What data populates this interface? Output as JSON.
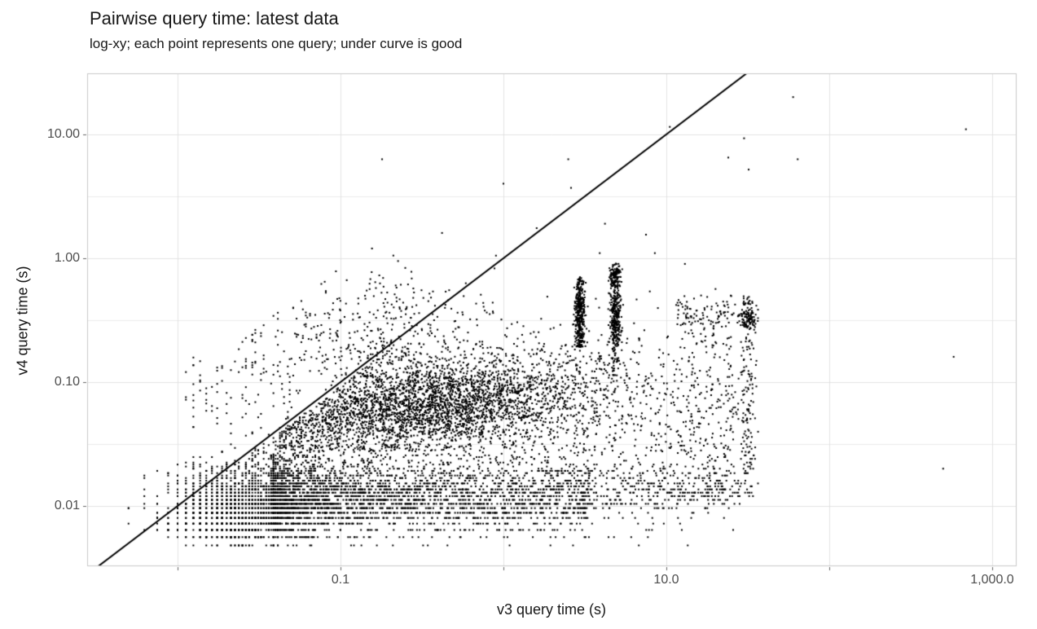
{
  "chart_data": {
    "type": "scatter",
    "title": "Pairwise query time: latest data",
    "subtitle": "log-xy; each point represents one query; under curve is good",
    "xlabel": "v3 query time (s)",
    "ylabel": "v4 query time (s)",
    "x_scale": {
      "type": "log10",
      "log_range": [
        -2.555,
        3.15
      ],
      "ticks": [
        {
          "value": 0.01,
          "label": ""
        },
        {
          "value": 0.1,
          "label": "0.1"
        },
        {
          "value": 1,
          "label": ""
        },
        {
          "value": 10,
          "label": "10.0"
        },
        {
          "value": 100,
          "label": ""
        },
        {
          "value": 1000,
          "label": "1,000.0"
        }
      ],
      "minor_gridlines": []
    },
    "y_scale": {
      "type": "log10",
      "log_range": [
        -2.487,
        1.493
      ],
      "ticks": [
        {
          "value": 10,
          "label": "10.00"
        },
        {
          "value": 1,
          "label": "1.00"
        },
        {
          "value": 0.1,
          "label": "0.10"
        },
        {
          "value": 0.01,
          "label": "0.01"
        }
      ],
      "minor_gridlines": [
        3.162,
        0.3162,
        0.03162
      ]
    },
    "reference_line": {
      "kind": "y=x",
      "color": "#000000",
      "width": 2
    },
    "point_style": {
      "color": "#000000",
      "size": 2
    },
    "colors": {
      "grid_major": "#e3e3e3",
      "grid_minor": "#ebebeb",
      "panel_border": "#c9c9c9",
      "tick_mark": "#666666",
      "tick_text": "#4d4d4d",
      "title_text": "#171717",
      "background": "#ffffff"
    },
    "generator": {
      "seed": 42,
      "note": "point cloud of ~11000 queries, log10 coords; quantized timer steps create stripe/grid texture at low values",
      "quantization": {
        "x_step": 0.00125,
        "x_below": 0.085,
        "x_min": 0.00475,
        "y_step": 0.0008,
        "y_below": 0.026,
        "y_min": 0.0048
      },
      "clusters": [
        {
          "name": "grid-low",
          "n": 1500,
          "lx": [
            "n",
            -1.62,
            0.22,
            -2.33,
            -1.05
          ],
          "ly": [
            "n",
            -2.02,
            0.17,
            -2.32,
            -1.35
          ],
          "cap": [
            0.6,
            -0.45
          ]
        },
        {
          "name": "stripes-mid",
          "n": 2500,
          "lx": [
            "pu",
            -1.42,
            1.95,
            1.7
          ],
          "ly": [
            "n",
            -1.92,
            0.14,
            -2.32,
            -1.58
          ]
        },
        {
          "name": "stripes-far",
          "n": 300,
          "lx": [
            "u",
            0.4,
            1.45
          ],
          "ly": [
            "n",
            -1.87,
            0.1,
            -2.05,
            -1.65
          ]
        },
        {
          "name": "main-band",
          "n": 2900,
          "lx": [
            "n",
            -0.42,
            0.52,
            -1.38,
            1.05
          ],
          "ly": [
            "lin",
            0.12,
            -1.13,
            0.17
          ],
          "under": true,
          "ly_min": -1.56
        },
        {
          "name": "upper-halo",
          "n": 480,
          "lx": [
            "n",
            -0.8,
            0.38,
            -1.65,
            0.3
          ],
          "ly": [
            "n",
            -0.7,
            0.3,
            -1.1,
            0.15
          ],
          "cap": [
            1.0,
            0.95
          ]
        },
        {
          "name": "cluster-x3",
          "n": 400,
          "lx": [
            "n",
            0.47,
            0.016,
            0.42,
            0.52
          ],
          "ly": [
            "mix",
            [
              0.7,
              [
                "u",
                -0.72,
                -0.15
              ]
            ],
            [
              0.3,
              [
                "n",
                -0.45,
                0.1,
                -0.8,
                -0.1
              ]
            ]
          ]
        },
        {
          "name": "cluster-x5",
          "n": 460,
          "lx": [
            "n",
            0.685,
            0.016,
            0.63,
            0.74
          ],
          "ly": [
            "mix",
            [
              0.35,
              [
                "n",
                -0.14,
                0.05,
                -0.25,
                -0.03
              ]
            ],
            [
              0.45,
              [
                "n",
                -0.48,
                0.12,
                -0.75,
                -0.2
              ]
            ],
            [
              0.2,
              [
                "u",
                -0.95,
                -0.2
              ]
            ]
          ]
        },
        {
          "name": "cluster-x30",
          "n": 520,
          "lx": [
            "mix",
            [
              0.55,
              [
                "n",
                1.5,
                0.025,
                1.44,
                1.57
              ]
            ],
            [
              0.45,
              [
                "u",
                1.06,
                1.44
              ]
            ]
          ],
          "ly": [
            "mix",
            [
              0.3,
              [
                "n",
                -0.47,
                0.06,
                -0.6,
                -0.33
              ]
            ],
            [
              0.7,
              [
                "u",
                -1.92,
                -0.3
              ]
            ]
          ]
        },
        {
          "name": "diffuse",
          "n": 1600,
          "lx": [
            "u",
            -1.55,
            1.42
          ],
          "ly": [
            "n",
            -1.38,
            0.45,
            -2.32,
            -0.2
          ],
          "under": true
        },
        {
          "name": "left-sparse",
          "n": 90,
          "lx": [
            "u",
            -1.95,
            -1.3
          ],
          "ly": [
            "u",
            -1.45,
            -0.75
          ]
        }
      ],
      "outliers": [
        [
          60,
          20
        ],
        [
          690,
          11
        ],
        [
          64,
          6.3
        ],
        [
          32,
          5.2
        ],
        [
          30,
          9.3
        ],
        [
          0.18,
          6.3
        ],
        [
          1.0,
          4.0
        ],
        [
          2.5,
          6.3
        ],
        [
          10.5,
          11.5
        ],
        [
          24,
          6.5
        ],
        [
          580,
          0.16
        ],
        [
          500,
          0.02
        ],
        [
          0.42,
          1.6
        ],
        [
          7.5,
          1.55
        ],
        [
          8.5,
          1.1
        ],
        [
          13,
          0.9
        ],
        [
          1.6,
          1.75
        ],
        [
          2.6,
          3.7
        ],
        [
          3.9,
          1.1
        ],
        [
          0.9,
          1.05
        ],
        [
          4.2,
          1.9
        ]
      ]
    }
  }
}
